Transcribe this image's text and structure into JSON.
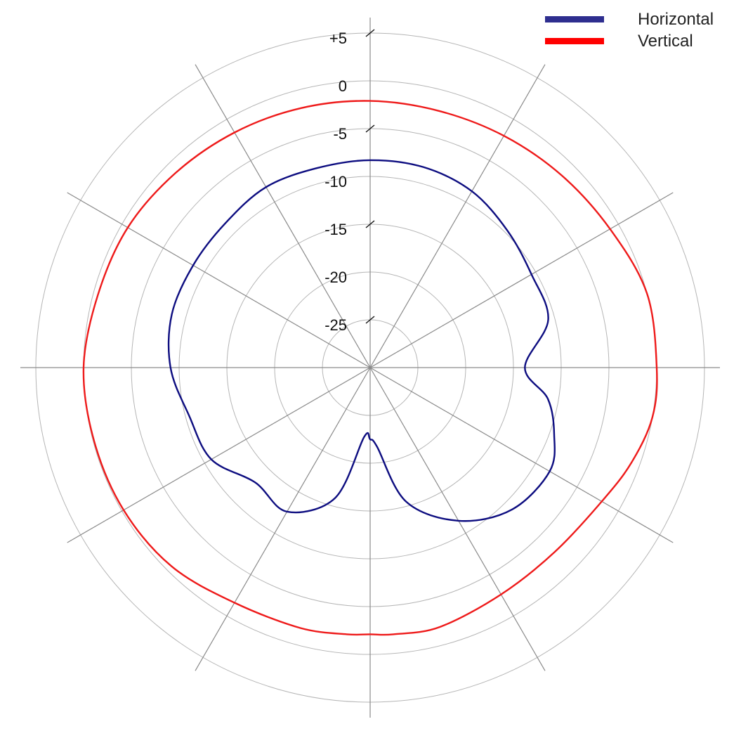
{
  "chart_data": {
    "type": "polar-line",
    "title": "",
    "unit": "",
    "radial_ticks": [
      5,
      0,
      -5,
      -10,
      -15,
      -20,
      -25
    ],
    "radial_tick_labels": [
      "+5",
      "0",
      "-5",
      "-10",
      "-15",
      "-20",
      "-25"
    ],
    "radial_range": [
      -30,
      5
    ],
    "angle_spokes_deg": [
      0,
      30,
      60,
      90,
      120,
      150,
      180,
      210,
      240,
      270,
      300,
      330
    ],
    "zero_direction": "top",
    "rotation": "clockwise",
    "grid": true,
    "legend_position": "top-right",
    "angles_deg": [
      0,
      15,
      30,
      45,
      60,
      75,
      90,
      100,
      110,
      120,
      135,
      150,
      165,
      175,
      180,
      185,
      195,
      210,
      225,
      240,
      255,
      270,
      285,
      300,
      315,
      330,
      345
    ],
    "series": [
      {
        "name": "Horizontal",
        "color": "#0d0d80",
        "values": [
          -8.3,
          -8.3,
          -8.7,
          -9.7,
          -10.5,
          -10.7,
          -13.8,
          -11.1,
          -9.5,
          -8.3,
          -9.0,
          -11.5,
          -15.5,
          -21.7,
          -22.5,
          -22.7,
          -15.9,
          -12.6,
          -13.0,
          -10.8,
          -10.4,
          -9.1,
          -8.5,
          -8.6,
          -8.6,
          -8.2,
          -8.4
        ]
      },
      {
        "name": "Vertical",
        "color": "#ee1a1a",
        "values": [
          -2.1,
          -2.2,
          -2.0,
          -1.6,
          -1.0,
          0.0,
          0.0,
          0.0,
          -0.9,
          -2.0,
          -2.7,
          -2.6,
          -1.9,
          -2.0,
          -2.1,
          -2.0,
          -1.8,
          -1.6,
          -0.6,
          -0.2,
          -0.1,
          0.0,
          -0.5,
          -0.7,
          -1.2,
          -1.6,
          -1.9
        ]
      }
    ]
  }
}
